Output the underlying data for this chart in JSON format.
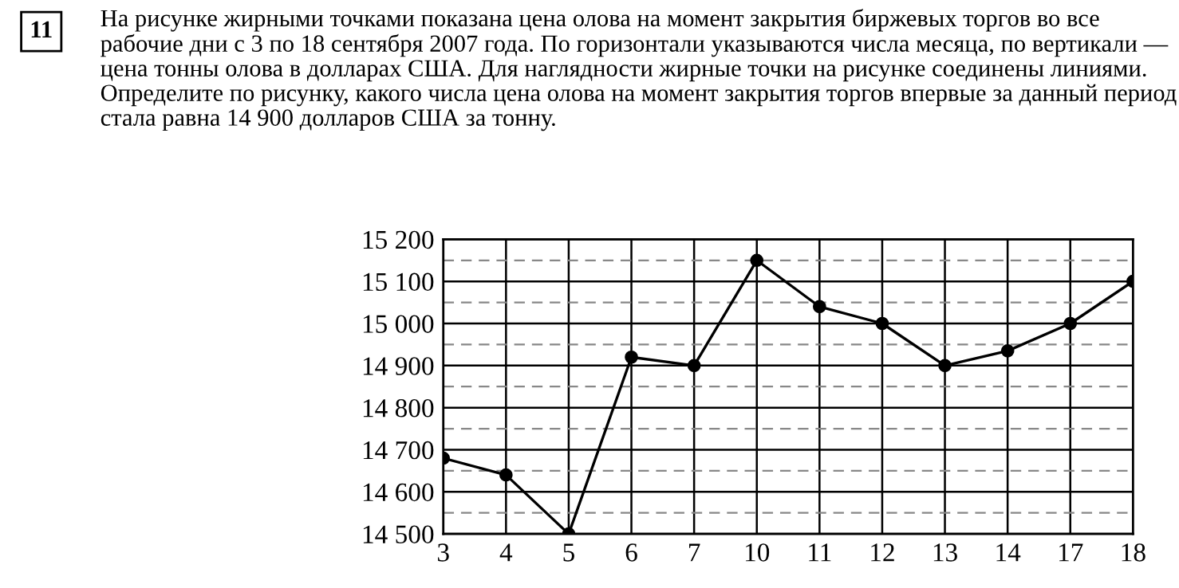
{
  "chart_data": {
    "type": "line",
    "title": "На рисунке жирными точками показана цена олова на момент закрытия биржевых торгов во все рабочие дни с 3 по 18 сентября 2007 года. По горизонтали указываются числа месяца, по вертикали — цена тонны олова в долларах США. Для наглядности жирные точки на рисунке соединены линиями. Определите по рисунку, какого числа цена олова на момент закрытия торгов впервые за данный период стала равна 14 900 долларов США за тонну.",
    "annotations": [
      "11"
    ],
    "categories": [
      "3",
      "4",
      "5",
      "6",
      "7",
      "10",
      "11",
      "12",
      "13",
      "14",
      "17",
      "18"
    ],
    "series": [
      {
        "color": "#000000",
        "values": [
          14680,
          14640,
          14500,
          14920,
          14900,
          15150,
          15040,
          15000,
          14900,
          14935,
          15000,
          15100
        ]
      }
    ],
    "ylim": [
      14500,
      15200
    ],
    "yticks": [
      {
        "value": 14500,
        "label": "14 500"
      },
      {
        "value": 14600,
        "label": "14 600"
      },
      {
        "value": 14700,
        "label": "14 700"
      },
      {
        "value": 14800,
        "label": "14 800"
      },
      {
        "value": 14900,
        "label": "14 900"
      },
      {
        "value": 15000,
        "label": "15 000"
      },
      {
        "value": 15100,
        "label": "15 100"
      },
      {
        "value": 15200,
        "label": "15 200"
      }
    ],
    "ref_lines": [
      {
        "axis": "y",
        "value": 14550,
        "label": null,
        "color": "#888888",
        "line_style": "dashed"
      },
      {
        "axis": "y",
        "value": 14650,
        "label": null,
        "color": "#888888",
        "line_style": "dashed"
      },
      {
        "axis": "y",
        "value": 14750,
        "label": null,
        "color": "#888888",
        "line_style": "dashed"
      },
      {
        "axis": "y",
        "value": 14850,
        "label": null,
        "color": "#888888",
        "line_style": "dashed"
      },
      {
        "axis": "y",
        "value": 14950,
        "label": null,
        "color": "#888888",
        "line_style": "dashed"
      },
      {
        "axis": "y",
        "value": 15050,
        "label": null,
        "color": "#888888",
        "line_style": "dashed"
      },
      {
        "axis": "y",
        "value": 15150,
        "label": null,
        "color": "#888888",
        "line_style": "dashed"
      }
    ],
    "grid": true,
    "marker": "circle",
    "line_style": "solid",
    "legend": false
  }
}
